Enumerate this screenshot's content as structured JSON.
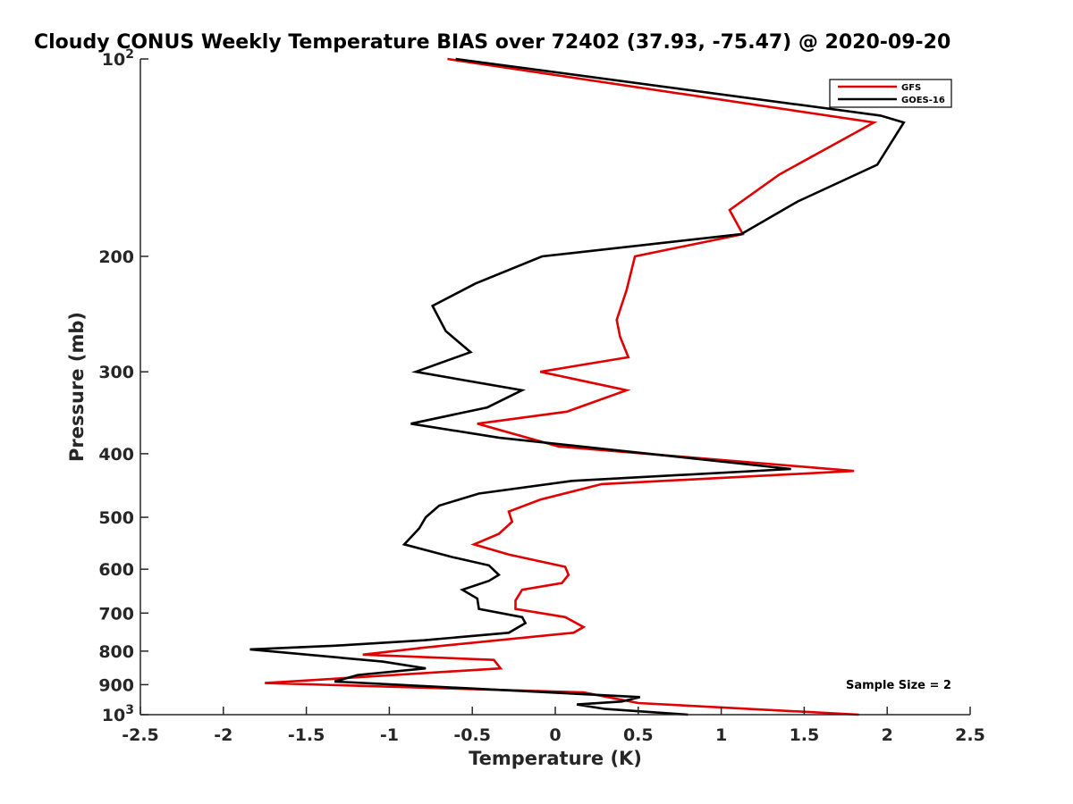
{
  "chart_data": {
    "type": "line",
    "title": "Cloudy CONUS Weekly Temperature BIAS over 72402 (37.93, -75.47) @ 2020-09-20",
    "xlabel": "Temperature (K)",
    "ylabel": "Pressure (mb)",
    "xlim": [
      -2.5,
      2.5
    ],
    "ylim": [
      100,
      1000
    ],
    "y_scale": "log",
    "y_reversed": true,
    "grid": false,
    "legend_position": "top-right",
    "x_ticks": [
      "-2.5",
      "-2",
      "-1.5",
      "-1",
      "-0.5",
      "0",
      "0.5",
      "1",
      "1.5",
      "2",
      "2.5"
    ],
    "y_ticks": [
      {
        "value": 100,
        "base": "10",
        "exp": "2"
      },
      {
        "value": 200,
        "label": "200"
      },
      {
        "value": 300,
        "label": "300"
      },
      {
        "value": 400,
        "label": "400"
      },
      {
        "value": 500,
        "label": "500"
      },
      {
        "value": 600,
        "label": "600"
      },
      {
        "value": 700,
        "label": "700"
      },
      {
        "value": 800,
        "label": "800"
      },
      {
        "value": 900,
        "label": "900"
      },
      {
        "value": 1000,
        "base": "10",
        "exp": "3"
      }
    ],
    "annotation": "Sample Size = 2",
    "series": [
      {
        "name": "GFS",
        "color": "#e00000",
        "points": [
          [
            -0.65,
            100
          ],
          [
            1.92,
            125
          ],
          [
            1.35,
            150
          ],
          [
            1.05,
            170
          ],
          [
            1.13,
            185
          ],
          [
            0.48,
            200
          ],
          [
            0.43,
            225
          ],
          [
            0.37,
            250
          ],
          [
            0.39,
            265
          ],
          [
            0.44,
            285
          ],
          [
            -0.09,
            300
          ],
          [
            0.43,
            320
          ],
          [
            0.07,
            345
          ],
          [
            -0.47,
            360
          ],
          [
            0.02,
            390
          ],
          [
            1.8,
            425
          ],
          [
            0.28,
            445
          ],
          [
            -0.09,
            470
          ],
          [
            -0.28,
            490
          ],
          [
            -0.26,
            508
          ],
          [
            -0.34,
            530
          ],
          [
            -0.49,
            550
          ],
          [
            -0.28,
            570
          ],
          [
            0.06,
            595
          ],
          [
            0.08,
            612
          ],
          [
            0.04,
            630
          ],
          [
            -0.2,
            645
          ],
          [
            -0.24,
            670
          ],
          [
            -0.24,
            690
          ],
          [
            0.06,
            710
          ],
          [
            0.17,
            735
          ],
          [
            0.11,
            750
          ],
          [
            -0.79,
            790
          ],
          [
            -1.16,
            810
          ],
          [
            -0.37,
            825
          ],
          [
            -0.33,
            850
          ],
          [
            -1.75,
            895
          ],
          [
            0.17,
            925
          ],
          [
            0.5,
            960
          ],
          [
            1.83,
            1000
          ]
        ]
      },
      {
        "name": "GOES-16",
        "color": "#000000",
        "points": [
          [
            -0.6,
            100
          ],
          [
            1.96,
            122
          ],
          [
            2.1,
            125
          ],
          [
            1.94,
            145
          ],
          [
            1.46,
            165
          ],
          [
            1.12,
            185
          ],
          [
            -0.08,
            200
          ],
          [
            -0.48,
            220
          ],
          [
            -0.74,
            238
          ],
          [
            -0.66,
            260
          ],
          [
            -0.51,
            280
          ],
          [
            -0.84,
            300
          ],
          [
            -0.2,
            320
          ],
          [
            -0.41,
            340
          ],
          [
            -0.87,
            360
          ],
          [
            -0.34,
            378
          ],
          [
            1.42,
            422
          ],
          [
            0.1,
            440
          ],
          [
            -0.46,
            460
          ],
          [
            -0.7,
            480
          ],
          [
            -0.78,
            500
          ],
          [
            -0.82,
            520
          ],
          [
            -0.91,
            550
          ],
          [
            -0.62,
            575
          ],
          [
            -0.4,
            592
          ],
          [
            -0.34,
            612
          ],
          [
            -0.4,
            625
          ],
          [
            -0.56,
            645
          ],
          [
            -0.47,
            665
          ],
          [
            -0.46,
            690
          ],
          [
            -0.2,
            710
          ],
          [
            -0.18,
            725
          ],
          [
            -0.28,
            750
          ],
          [
            -0.79,
            770
          ],
          [
            -1.33,
            785
          ],
          [
            -1.84,
            795
          ],
          [
            -1.04,
            830
          ],
          [
            -0.78,
            850
          ],
          [
            -1.19,
            870
          ],
          [
            -1.33,
            890
          ],
          [
            0.51,
            940
          ],
          [
            0.4,
            955
          ],
          [
            0.13,
            965
          ],
          [
            0.3,
            980
          ],
          [
            0.8,
            1000
          ]
        ]
      }
    ]
  }
}
